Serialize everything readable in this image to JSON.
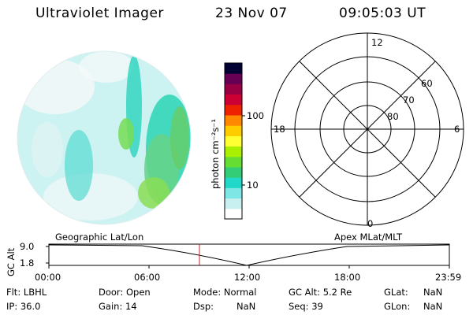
{
  "header": {
    "instrument": "Ultraviolet Imager",
    "date": "23 Nov 07",
    "time": "09:05:03 UT"
  },
  "colorbar": {
    "unit_label": "photon cm⁻²s⁻¹",
    "tick_labels": [
      "100",
      "10"
    ],
    "colors_bottom_to_top": [
      "#ffffff",
      "#c8f0f0",
      "#7fe6e6",
      "#22d8c8",
      "#33cc77",
      "#66dd33",
      "#aaee00",
      "#ffff33",
      "#ffcc00",
      "#ff8800",
      "#ee2200",
      "#cc0033",
      "#990044",
      "#660055",
      "#000033"
    ]
  },
  "polar_plot": {
    "top_label": "12",
    "bottom_label": "0",
    "left_label": "18",
    "right_label": "6",
    "ring_labels": [
      "60",
      "70",
      "80"
    ]
  },
  "altitude_strip": {
    "left_caption": "Geographic Lat/Lon",
    "right_caption": "Apex MLat/MLT",
    "y_label": "GC Alt",
    "y_ticks": [
      "9.0",
      "1.8"
    ],
    "x_ticks": [
      "00:00",
      "06:00",
      "12:00",
      "18:00",
      "23:59"
    ]
  },
  "info_rows": [
    [
      {
        "label": "Flt: LBHL"
      },
      {
        "label": "Door: Open"
      },
      {
        "label": "Mode: Normal"
      },
      {
        "label": "GC Alt: 5.2 Re"
      },
      {
        "label": "GLat:",
        "value": "NaN"
      }
    ],
    [
      {
        "label": "IP: 36.0"
      },
      {
        "label": "Gain: 14"
      },
      {
        "label": "Dsp:",
        "value": "NaN"
      },
      {
        "label": "Seq: 39"
      },
      {
        "label": "GLon:",
        "value": "NaN"
      }
    ]
  ],
  "colors": {
    "marker": "#cc2222",
    "line": "#000000",
    "imager_fill": "#d8f4f4"
  }
}
